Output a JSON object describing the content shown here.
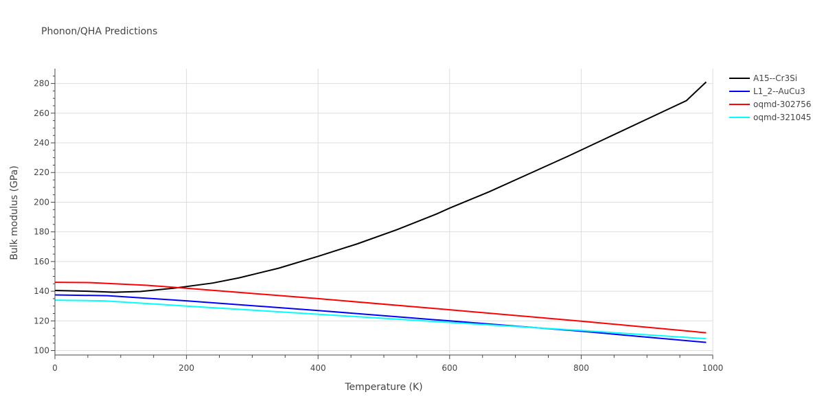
{
  "chart_data": {
    "type": "line",
    "title": "Phonon/QHA Predictions",
    "xlabel": "Temperature (K)",
    "ylabel": "Bulk modulus (GPa)",
    "xlim": [
      0,
      1000
    ],
    "ylim": [
      97,
      290
    ],
    "xticks": [
      0,
      200,
      400,
      600,
      800,
      1000
    ],
    "yticks": [
      100,
      120,
      140,
      160,
      180,
      200,
      220,
      240,
      260,
      280
    ],
    "grid": true,
    "legend_position": "top-right",
    "series": [
      {
        "name": "A15--Cr3Si",
        "color": "#000000",
        "x": [
          0,
          50,
          90,
          130,
          180,
          240,
          280,
          340,
          400,
          460,
          520,
          580,
          600,
          660,
          720,
          780,
          840,
          900,
          960,
          990
        ],
        "y": [
          140.5,
          140,
          139.3,
          139.8,
          142,
          145.5,
          149,
          155.5,
          163.5,
          172,
          181.5,
          192,
          196,
          207,
          219,
          231,
          243.5,
          256,
          268.5,
          281
        ]
      },
      {
        "name": "L1_2--AuCu3",
        "color": "#0000ff",
        "x": [
          0,
          80,
          200,
          400,
          600,
          800,
          990
        ],
        "y": [
          137.5,
          137,
          133.5,
          127,
          120,
          113,
          105.5
        ]
      },
      {
        "name": "oqmd-302756",
        "color": "#ff0000",
        "x": [
          0,
          55,
          140,
          200,
          400,
          600,
          800,
          990
        ],
        "y": [
          146,
          145.8,
          144,
          142,
          135,
          127.5,
          119.8,
          112
        ]
      },
      {
        "name": "oqmd-321045",
        "color": "#00ffff",
        "x": [
          0,
          75,
          200,
          400,
          600,
          800,
          990
        ],
        "y": [
          134,
          133.5,
          130,
          124.5,
          119,
          113.5,
          108
        ]
      }
    ]
  }
}
